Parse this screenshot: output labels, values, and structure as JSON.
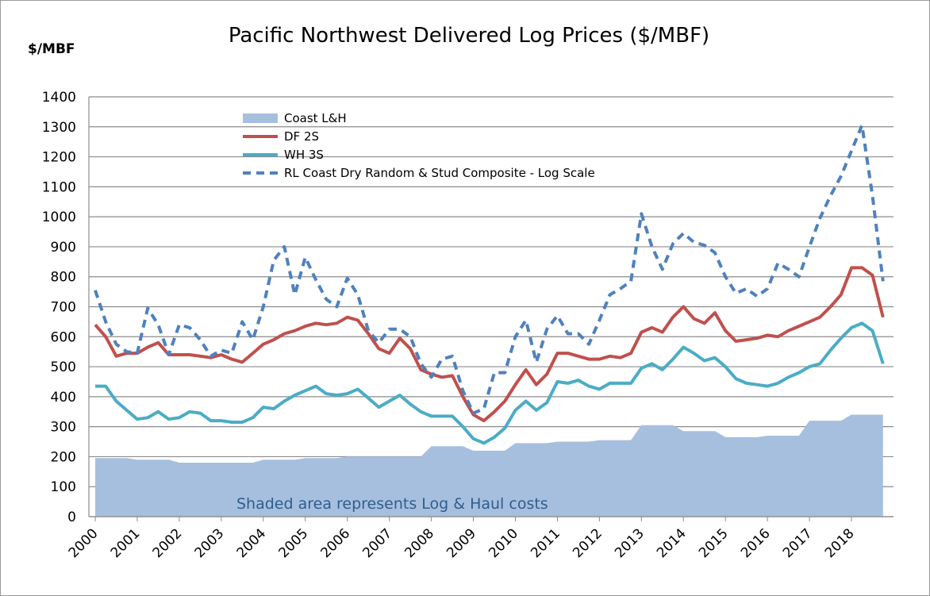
{
  "chart_data": {
    "type": "line",
    "title": "Pacific Northwest Delivered Log Prices ($/MBF)",
    "y_label": "$/MBF",
    "annotation": "Shaded area represents Log & Haul costs",
    "x": [
      2000,
      2000.25,
      2000.5,
      2000.75,
      2001,
      2001.25,
      2001.5,
      2001.75,
      2002,
      2002.25,
      2002.5,
      2002.75,
      2003,
      2003.25,
      2003.5,
      2003.75,
      2004,
      2004.25,
      2004.5,
      2004.75,
      2005,
      2005.25,
      2005.5,
      2005.75,
      2006,
      2006.25,
      2006.5,
      2006.75,
      2007,
      2007.25,
      2007.5,
      2007.75,
      2008,
      2008.25,
      2008.5,
      2008.75,
      2009,
      2009.25,
      2009.5,
      2009.75,
      2010,
      2010.25,
      2010.5,
      2010.75,
      2011,
      2011.25,
      2011.5,
      2011.75,
      2012,
      2012.25,
      2012.5,
      2012.75,
      2013,
      2013.25,
      2013.5,
      2013.75,
      2014,
      2014.25,
      2014.5,
      2014.75,
      2015,
      2015.25,
      2015.5,
      2015.75,
      2016,
      2016.25,
      2016.5,
      2016.75,
      2017,
      2017.25,
      2017.5,
      2017.75,
      2018,
      2018.25,
      2018.5,
      2018.75
    ],
    "xlim": [
      2000,
      2019
    ],
    "xticks": [
      2000,
      2001,
      2002,
      2003,
      2004,
      2005,
      2006,
      2007,
      2008,
      2009,
      2010,
      2011,
      2012,
      2013,
      2014,
      2015,
      2016,
      2017,
      2018
    ],
    "ylim": [
      0,
      1400
    ],
    "yticks": [
      0,
      100,
      200,
      300,
      400,
      500,
      600,
      700,
      800,
      900,
      1000,
      1100,
      1200,
      1300,
      1400
    ],
    "grid": true,
    "series": [
      {
        "name": "Coast L&H",
        "kind": "area",
        "color": "#a7bfdf",
        "values": [
          195,
          195,
          195,
          195,
          190,
          190,
          190,
          190,
          180,
          180,
          180,
          180,
          180,
          180,
          180,
          180,
          190,
          190,
          190,
          190,
          195,
          195,
          195,
          195,
          200,
          200,
          200,
          200,
          200,
          200,
          200,
          200,
          235,
          235,
          235,
          235,
          220,
          220,
          220,
          220,
          245,
          245,
          245,
          245,
          250,
          250,
          250,
          250,
          255,
          255,
          255,
          255,
          305,
          305,
          305,
          305,
          285,
          285,
          285,
          285,
          265,
          265,
          265,
          265,
          270,
          270,
          270,
          270,
          320,
          320,
          320,
          320,
          340,
          340,
          340,
          340
        ]
      },
      {
        "name": "DF 2S",
        "kind": "line",
        "color": "#c0504d",
        "values": [
          640,
          600,
          535,
          545,
          545,
          565,
          580,
          540,
          540,
          540,
          535,
          530,
          540,
          525,
          515,
          545,
          575,
          590,
          610,
          620,
          635,
          645,
          640,
          645,
          665,
          655,
          610,
          560,
          545,
          595,
          560,
          490,
          475,
          465,
          470,
          400,
          340,
          320,
          350,
          385,
          440,
          490,
          440,
          475,
          545,
          545,
          535,
          525,
          525,
          535,
          530,
          545,
          615,
          630,
          615,
          665,
          700,
          660,
          645,
          680,
          620,
          585,
          590,
          595,
          605,
          600,
          620,
          635,
          650,
          665,
          700,
          740,
          830,
          830,
          805,
          665
        ]
      },
      {
        "name": "WH 3S",
        "kind": "line",
        "color": "#4bacc6",
        "values": [
          435,
          435,
          385,
          355,
          325,
          330,
          350,
          325,
          330,
          350,
          345,
          320,
          320,
          315,
          315,
          330,
          365,
          360,
          385,
          405,
          420,
          435,
          410,
          405,
          410,
          425,
          395,
          365,
          385,
          405,
          375,
          350,
          335,
          335,
          335,
          300,
          260,
          245,
          265,
          295,
          355,
          385,
          355,
          380,
          450,
          445,
          455,
          435,
          425,
          445,
          445,
          445,
          495,
          510,
          490,
          525,
          565,
          545,
          520,
          530,
          500,
          460,
          445,
          440,
          435,
          445,
          465,
          480,
          500,
          510,
          555,
          595,
          630,
          645,
          620,
          510
        ]
      },
      {
        "name": "RL Coast Dry Random & Stud Composite - Log Scale",
        "kind": "dashed",
        "color": "#4f81bd",
        "values": [
          755,
          650,
          575,
          550,
          545,
          695,
          640,
          540,
          640,
          630,
          590,
          535,
          555,
          545,
          650,
          590,
          700,
          855,
          900,
          740,
          865,
          790,
          725,
          700,
          795,
          740,
          620,
          580,
          625,
          625,
          600,
          510,
          465,
          525,
          535,
          420,
          345,
          360,
          480,
          480,
          600,
          655,
          515,
          625,
          670,
          610,
          610,
          575,
          655,
          740,
          760,
          785,
          1010,
          900,
          825,
          910,
          945,
          915,
          905,
          880,
          800,
          745,
          760,
          735,
          760,
          845,
          825,
          800,
          900,
          995,
          1070,
          1135,
          1220,
          1305,
          1070,
          785
        ]
      }
    ]
  }
}
